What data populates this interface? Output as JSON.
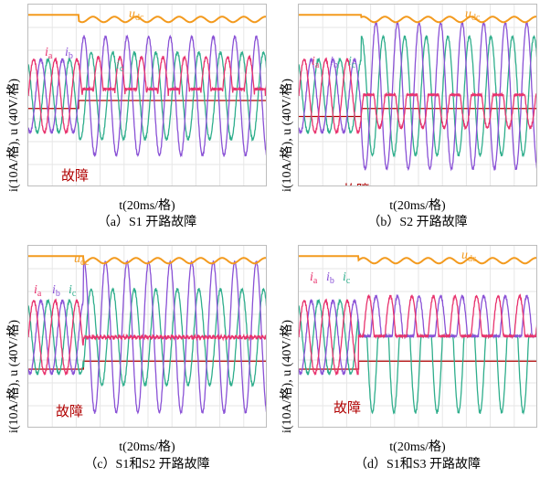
{
  "chart_data": [
    {
      "type": "line",
      "id": "a",
      "caption": "（a）S1 开路故障",
      "xlabel": "t(20ms/格)",
      "ylabel": "i(10A/格), u (40V/格)",
      "fault_label": "故障",
      "fault_time_div": 2.1,
      "x_range_div": [
        0,
        10
      ],
      "y_range_div": [
        -4,
        4
      ],
      "grid": true,
      "period_div": 0.9,
      "series": [
        {
          "name": "u_dc",
          "label": "u",
          "label_sub": "dc",
          "color": "#f39a1e",
          "pre_fault": "dc ≈ 3.5 div",
          "post_fault": "dc with ripple ≈ 3.3 div"
        },
        {
          "name": "i_a",
          "label": "i",
          "label_sub": "a",
          "color": "#e8336e",
          "pre_fault_amplitude_div": 1.6,
          "post_fault": "positive half-wave only, negative half clamped ≈ 0.3 div",
          "post_fault_amplitude_div": 1.7
        },
        {
          "name": "i_b",
          "label": "i",
          "label_sub": "b",
          "color": "#8a52d6",
          "pre_fault_amplitude_div": 1.6,
          "post_fault_amplitude_div": 2.6
        },
        {
          "name": "i_c",
          "label": "i",
          "label_sub": "c",
          "color": "#2fae8c",
          "pre_fault_amplitude_div": 1.6,
          "post_fault_amplitude_div": 1.9
        }
      ]
    },
    {
      "type": "line",
      "id": "b",
      "caption": "（b）S2 开路故障",
      "xlabel": "t(20ms/格)",
      "ylabel": "i(10A/格), u (40V/格)",
      "fault_label": "故障",
      "fault_time_div": 2.6,
      "x_range_div": [
        0,
        10
      ],
      "y_range_div": [
        -4,
        4
      ],
      "grid": true,
      "period_div": 0.9,
      "series": [
        {
          "name": "u_dc",
          "label": "u",
          "label_sub": "dc",
          "color": "#f39a1e",
          "pre_fault": "dc ≈ 3.5 div",
          "post_fault": "dc with ripple ≈ 3.4 div"
        },
        {
          "name": "i_a",
          "label": "i",
          "label_sub": "a",
          "color": "#e8336e",
          "pre_fault_amplitude_div": 1.6,
          "post_fault": "negative half-wave only, positive half clamped",
          "post_fault_amplitude_div": 1.4
        },
        {
          "name": "i_b",
          "label": "i",
          "label_sub": "b",
          "color": "#8a52d6",
          "pre_fault_amplitude_div": 1.6,
          "post_fault_amplitude_div": 3.2
        },
        {
          "name": "i_c",
          "label": "i",
          "label_sub": "c",
          "color": "#2fae8c",
          "pre_fault_amplitude_div": 1.6,
          "post_fault_amplitude_div": 2.6
        }
      ]
    },
    {
      "type": "line",
      "id": "c",
      "caption": "（c）S1和S2 开路故障",
      "xlabel": "t(20ms/格)",
      "ylabel": "i(10A/格), u (40V/格)",
      "fault_label": "故障",
      "fault_time_div": 2.3,
      "x_range_div": [
        0,
        10
      ],
      "y_range_div": [
        -4,
        4
      ],
      "grid": true,
      "period_div": 0.9,
      "series": [
        {
          "name": "u_dc",
          "label": "u",
          "label_sub": "dc",
          "color": "#f39a1e",
          "pre_fault": "dc ≈ 3.5 div",
          "post_fault": "dc with ripple ≈ 3.3 div"
        },
        {
          "name": "i_a",
          "label": "i",
          "label_sub": "a",
          "color": "#e8336e",
          "pre_fault_amplitude_div": 1.6,
          "post_fault": "≈ 0 div (phase a open)",
          "post_fault_amplitude_div": 0
        },
        {
          "name": "i_b",
          "label": "i",
          "label_sub": "b",
          "color": "#8a52d6",
          "pre_fault_amplitude_div": 1.6,
          "post_fault_amplitude_div": 3.3
        },
        {
          "name": "i_c",
          "label": "i",
          "label_sub": "c",
          "color": "#2fae8c",
          "pre_fault_amplitude_div": 1.6,
          "post_fault_amplitude_div": 2.1
        }
      ]
    },
    {
      "type": "line",
      "id": "d",
      "caption": "（d）S1和S3 开路故障",
      "xlabel": "t(20ms/格)",
      "ylabel": "i(10A/格), u (40V/格)",
      "fault_label": "故障",
      "fault_time_div": 2.5,
      "x_range_div": [
        0,
        10
      ],
      "y_range_div": [
        -4,
        4
      ],
      "grid": true,
      "period_div": 0.9,
      "series": [
        {
          "name": "u_dc",
          "label": "u",
          "label_sub": "dc",
          "color": "#f39a1e",
          "pre_fault": "dc ≈ 3.5 div",
          "post_fault": "dc with ripple ≈ 3.4 div"
        },
        {
          "name": "i_a",
          "label": "i",
          "label_sub": "a",
          "color": "#e8336e",
          "pre_fault_amplitude_div": 1.6,
          "post_fault": "positive half-wave only",
          "post_fault_amplitude_div": 1.8
        },
        {
          "name": "i_b",
          "label": "i",
          "label_sub": "b",
          "color": "#8a52d6",
          "pre_fault_amplitude_div": 1.6,
          "post_fault": "positive half-wave only",
          "post_fault_amplitude_div": 1.8
        },
        {
          "name": "i_c",
          "label": "i",
          "label_sub": "c",
          "color": "#2fae8c",
          "pre_fault_amplitude_div": 1.6,
          "post_fault": "negative half-wave only",
          "post_fault_amplitude_div": 3.3
        }
      ]
    }
  ]
}
